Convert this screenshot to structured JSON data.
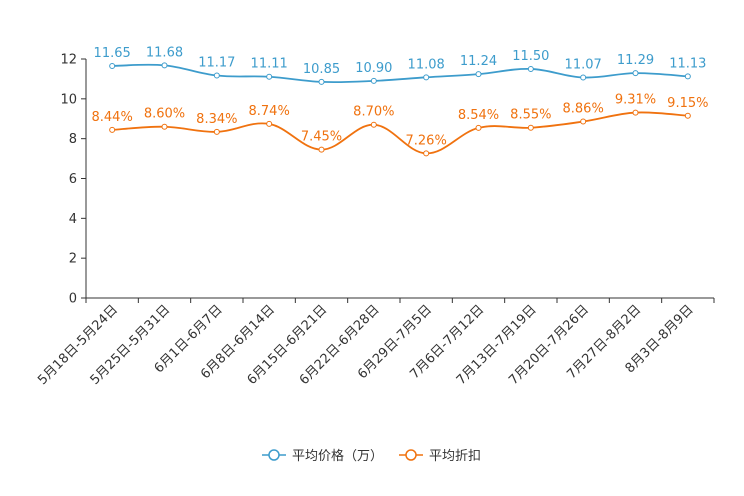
{
  "chart_data": {
    "type": "line",
    "categories": [
      "5月18日-5月24日",
      "5月25日-5月31日",
      "6月1日-6月7日",
      "6月8日-6月14日",
      "6月15日-6月21日",
      "6月22日-6月28日",
      "6月29日-7月5日",
      "7月6日-7月12日",
      "7月13日-7月19日",
      "7月20日-7月26日",
      "7月27日-8月2日",
      "8月3日-8月9日"
    ],
    "ylim": [
      0,
      12
    ],
    "yticks": [
      "0",
      "2",
      "4",
      "6",
      "8",
      "10",
      "12"
    ],
    "grid": false,
    "legend_position": "bottom",
    "series": [
      {
        "name": "平均价格（万）",
        "color": "#3d9ccc",
        "values": [
          11.65,
          11.68,
          11.17,
          11.11,
          10.85,
          10.9,
          11.08,
          11.24,
          11.5,
          11.07,
          11.29,
          11.13
        ],
        "labels": [
          "11.65",
          "11.68",
          "11.17",
          "11.11",
          "10.85",
          "10.90",
          "11.08",
          "11.24",
          "11.50",
          "11.07",
          "11.29",
          "11.13"
        ]
      },
      {
        "name": "平均折扣",
        "color": "#f0720f",
        "values": [
          8.44,
          8.6,
          8.34,
          8.74,
          7.45,
          8.7,
          7.26,
          8.54,
          8.55,
          8.86,
          9.31,
          9.15
        ],
        "labels": [
          "8.44%",
          "8.60%",
          "8.34%",
          "8.74%",
          "7.45%",
          "8.70%",
          "7.26%",
          "8.54%",
          "8.55%",
          "8.86%",
          "9.31%",
          "9.15%"
        ]
      }
    ]
  }
}
